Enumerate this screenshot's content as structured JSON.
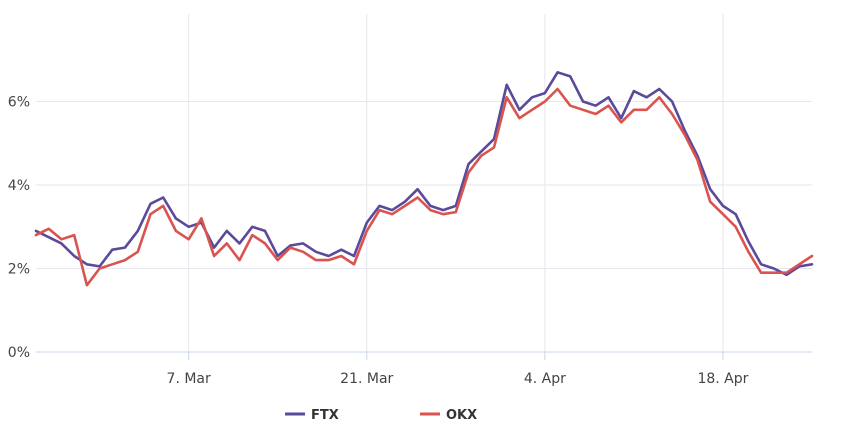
{
  "chart_data": {
    "type": "line",
    "x_type": "datetime",
    "x_range": [
      "2022-02-23",
      "2022-04-25"
    ],
    "ylim": [
      0,
      8
    ],
    "y_ticks": [
      {
        "value": 0,
        "label": "0%"
      },
      {
        "value": 2,
        "label": "2%"
      },
      {
        "value": 4,
        "label": "4%"
      },
      {
        "value": 6,
        "label": "6%"
      }
    ],
    "x_ticks": [
      {
        "date": "2022-03-07",
        "label": "7. Mar"
      },
      {
        "date": "2022-03-21",
        "label": "21. Mar"
      },
      {
        "date": "2022-04-04",
        "label": "4. Apr"
      },
      {
        "date": "2022-04-18",
        "label": "18. Apr"
      }
    ],
    "grid": true,
    "legend_position": "bottom-center",
    "series": [
      {
        "name": "FTX",
        "color": "#5b4a9b",
        "points": [
          [
            "2022-02-23",
            2.9
          ],
          [
            "2022-02-24",
            2.75
          ],
          [
            "2022-02-25",
            2.6
          ],
          [
            "2022-02-26",
            2.3
          ],
          [
            "2022-02-27",
            2.1
          ],
          [
            "2022-02-28",
            2.05
          ],
          [
            "2022-03-01",
            2.45
          ],
          [
            "2022-03-02",
            2.5
          ],
          [
            "2022-03-03",
            2.9
          ],
          [
            "2022-03-04",
            3.55
          ],
          [
            "2022-03-05",
            3.7
          ],
          [
            "2022-03-06",
            3.2
          ],
          [
            "2022-03-07",
            3.0
          ],
          [
            "2022-03-08",
            3.1
          ],
          [
            "2022-03-09",
            2.5
          ],
          [
            "2022-03-10",
            2.9
          ],
          [
            "2022-03-11",
            2.6
          ],
          [
            "2022-03-12",
            3.0
          ],
          [
            "2022-03-13",
            2.9
          ],
          [
            "2022-03-14",
            2.3
          ],
          [
            "2022-03-15",
            2.55
          ],
          [
            "2022-03-16",
            2.6
          ],
          [
            "2022-03-17",
            2.4
          ],
          [
            "2022-03-18",
            2.3
          ],
          [
            "2022-03-19",
            2.45
          ],
          [
            "2022-03-20",
            2.3
          ],
          [
            "2022-03-21",
            3.1
          ],
          [
            "2022-03-22",
            3.5
          ],
          [
            "2022-03-23",
            3.4
          ],
          [
            "2022-03-24",
            3.6
          ],
          [
            "2022-03-25",
            3.9
          ],
          [
            "2022-03-26",
            3.5
          ],
          [
            "2022-03-27",
            3.4
          ],
          [
            "2022-03-28",
            3.5
          ],
          [
            "2022-03-29",
            4.5
          ],
          [
            "2022-03-30",
            4.8
          ],
          [
            "2022-03-31",
            5.1
          ],
          [
            "2022-04-01",
            6.4
          ],
          [
            "2022-04-02",
            5.8
          ],
          [
            "2022-04-03",
            6.1
          ],
          [
            "2022-04-04",
            6.2
          ],
          [
            "2022-04-05",
            6.7
          ],
          [
            "2022-04-06",
            6.6
          ],
          [
            "2022-04-07",
            6.0
          ],
          [
            "2022-04-08",
            5.9
          ],
          [
            "2022-04-09",
            6.1
          ],
          [
            "2022-04-10",
            5.6
          ],
          [
            "2022-04-11",
            6.25
          ],
          [
            "2022-04-12",
            6.1
          ],
          [
            "2022-04-13",
            6.3
          ],
          [
            "2022-04-14",
            6.0
          ],
          [
            "2022-04-15",
            5.3
          ],
          [
            "2022-04-16",
            4.7
          ],
          [
            "2022-04-17",
            3.9
          ],
          [
            "2022-04-18",
            3.5
          ],
          [
            "2022-04-19",
            3.3
          ],
          [
            "2022-04-20",
            2.65
          ],
          [
            "2022-04-21",
            2.1
          ],
          [
            "2022-04-22",
            2.0
          ],
          [
            "2022-04-23",
            1.85
          ],
          [
            "2022-04-24",
            2.05
          ],
          [
            "2022-04-25",
            2.1
          ]
        ]
      },
      {
        "name": "OKX",
        "color": "#d9534f",
        "points": [
          [
            "2022-02-23",
            2.8
          ],
          [
            "2022-02-24",
            2.95
          ],
          [
            "2022-02-25",
            2.7
          ],
          [
            "2022-02-26",
            2.8
          ],
          [
            "2022-02-27",
            1.6
          ],
          [
            "2022-02-28",
            2.0
          ],
          [
            "2022-03-01",
            2.1
          ],
          [
            "2022-03-02",
            2.2
          ],
          [
            "2022-03-03",
            2.4
          ],
          [
            "2022-03-04",
            3.3
          ],
          [
            "2022-03-05",
            3.5
          ],
          [
            "2022-03-06",
            2.9
          ],
          [
            "2022-03-07",
            2.7
          ],
          [
            "2022-03-08",
            3.2
          ],
          [
            "2022-03-09",
            2.3
          ],
          [
            "2022-03-10",
            2.6
          ],
          [
            "2022-03-11",
            2.2
          ],
          [
            "2022-03-12",
            2.8
          ],
          [
            "2022-03-13",
            2.6
          ],
          [
            "2022-03-14",
            2.2
          ],
          [
            "2022-03-15",
            2.5
          ],
          [
            "2022-03-16",
            2.4
          ],
          [
            "2022-03-17",
            2.2
          ],
          [
            "2022-03-18",
            2.2
          ],
          [
            "2022-03-19",
            2.3
          ],
          [
            "2022-03-20",
            2.1
          ],
          [
            "2022-03-21",
            2.9
          ],
          [
            "2022-03-22",
            3.4
          ],
          [
            "2022-03-23",
            3.3
          ],
          [
            "2022-03-24",
            3.5
          ],
          [
            "2022-03-25",
            3.7
          ],
          [
            "2022-03-26",
            3.4
          ],
          [
            "2022-03-27",
            3.3
          ],
          [
            "2022-03-28",
            3.35
          ],
          [
            "2022-03-29",
            4.3
          ],
          [
            "2022-03-30",
            4.7
          ],
          [
            "2022-03-31",
            4.9
          ],
          [
            "2022-04-01",
            6.1
          ],
          [
            "2022-04-02",
            5.6
          ],
          [
            "2022-04-03",
            5.8
          ],
          [
            "2022-04-04",
            6.0
          ],
          [
            "2022-04-05",
            6.3
          ],
          [
            "2022-04-06",
            5.9
          ],
          [
            "2022-04-07",
            5.8
          ],
          [
            "2022-04-08",
            5.7
          ],
          [
            "2022-04-09",
            5.9
          ],
          [
            "2022-04-10",
            5.5
          ],
          [
            "2022-04-11",
            5.8
          ],
          [
            "2022-04-12",
            5.8
          ],
          [
            "2022-04-13",
            6.1
          ],
          [
            "2022-04-14",
            5.7
          ],
          [
            "2022-04-15",
            5.2
          ],
          [
            "2022-04-16",
            4.6
          ],
          [
            "2022-04-17",
            3.6
          ],
          [
            "2022-04-18",
            3.3
          ],
          [
            "2022-04-19",
            3.0
          ],
          [
            "2022-04-20",
            2.4
          ],
          [
            "2022-04-21",
            1.9
          ],
          [
            "2022-04-22",
            1.9
          ],
          [
            "2022-04-23",
            1.9
          ],
          [
            "2022-04-24",
            2.1
          ],
          [
            "2022-04-25",
            2.3
          ]
        ]
      }
    ]
  }
}
